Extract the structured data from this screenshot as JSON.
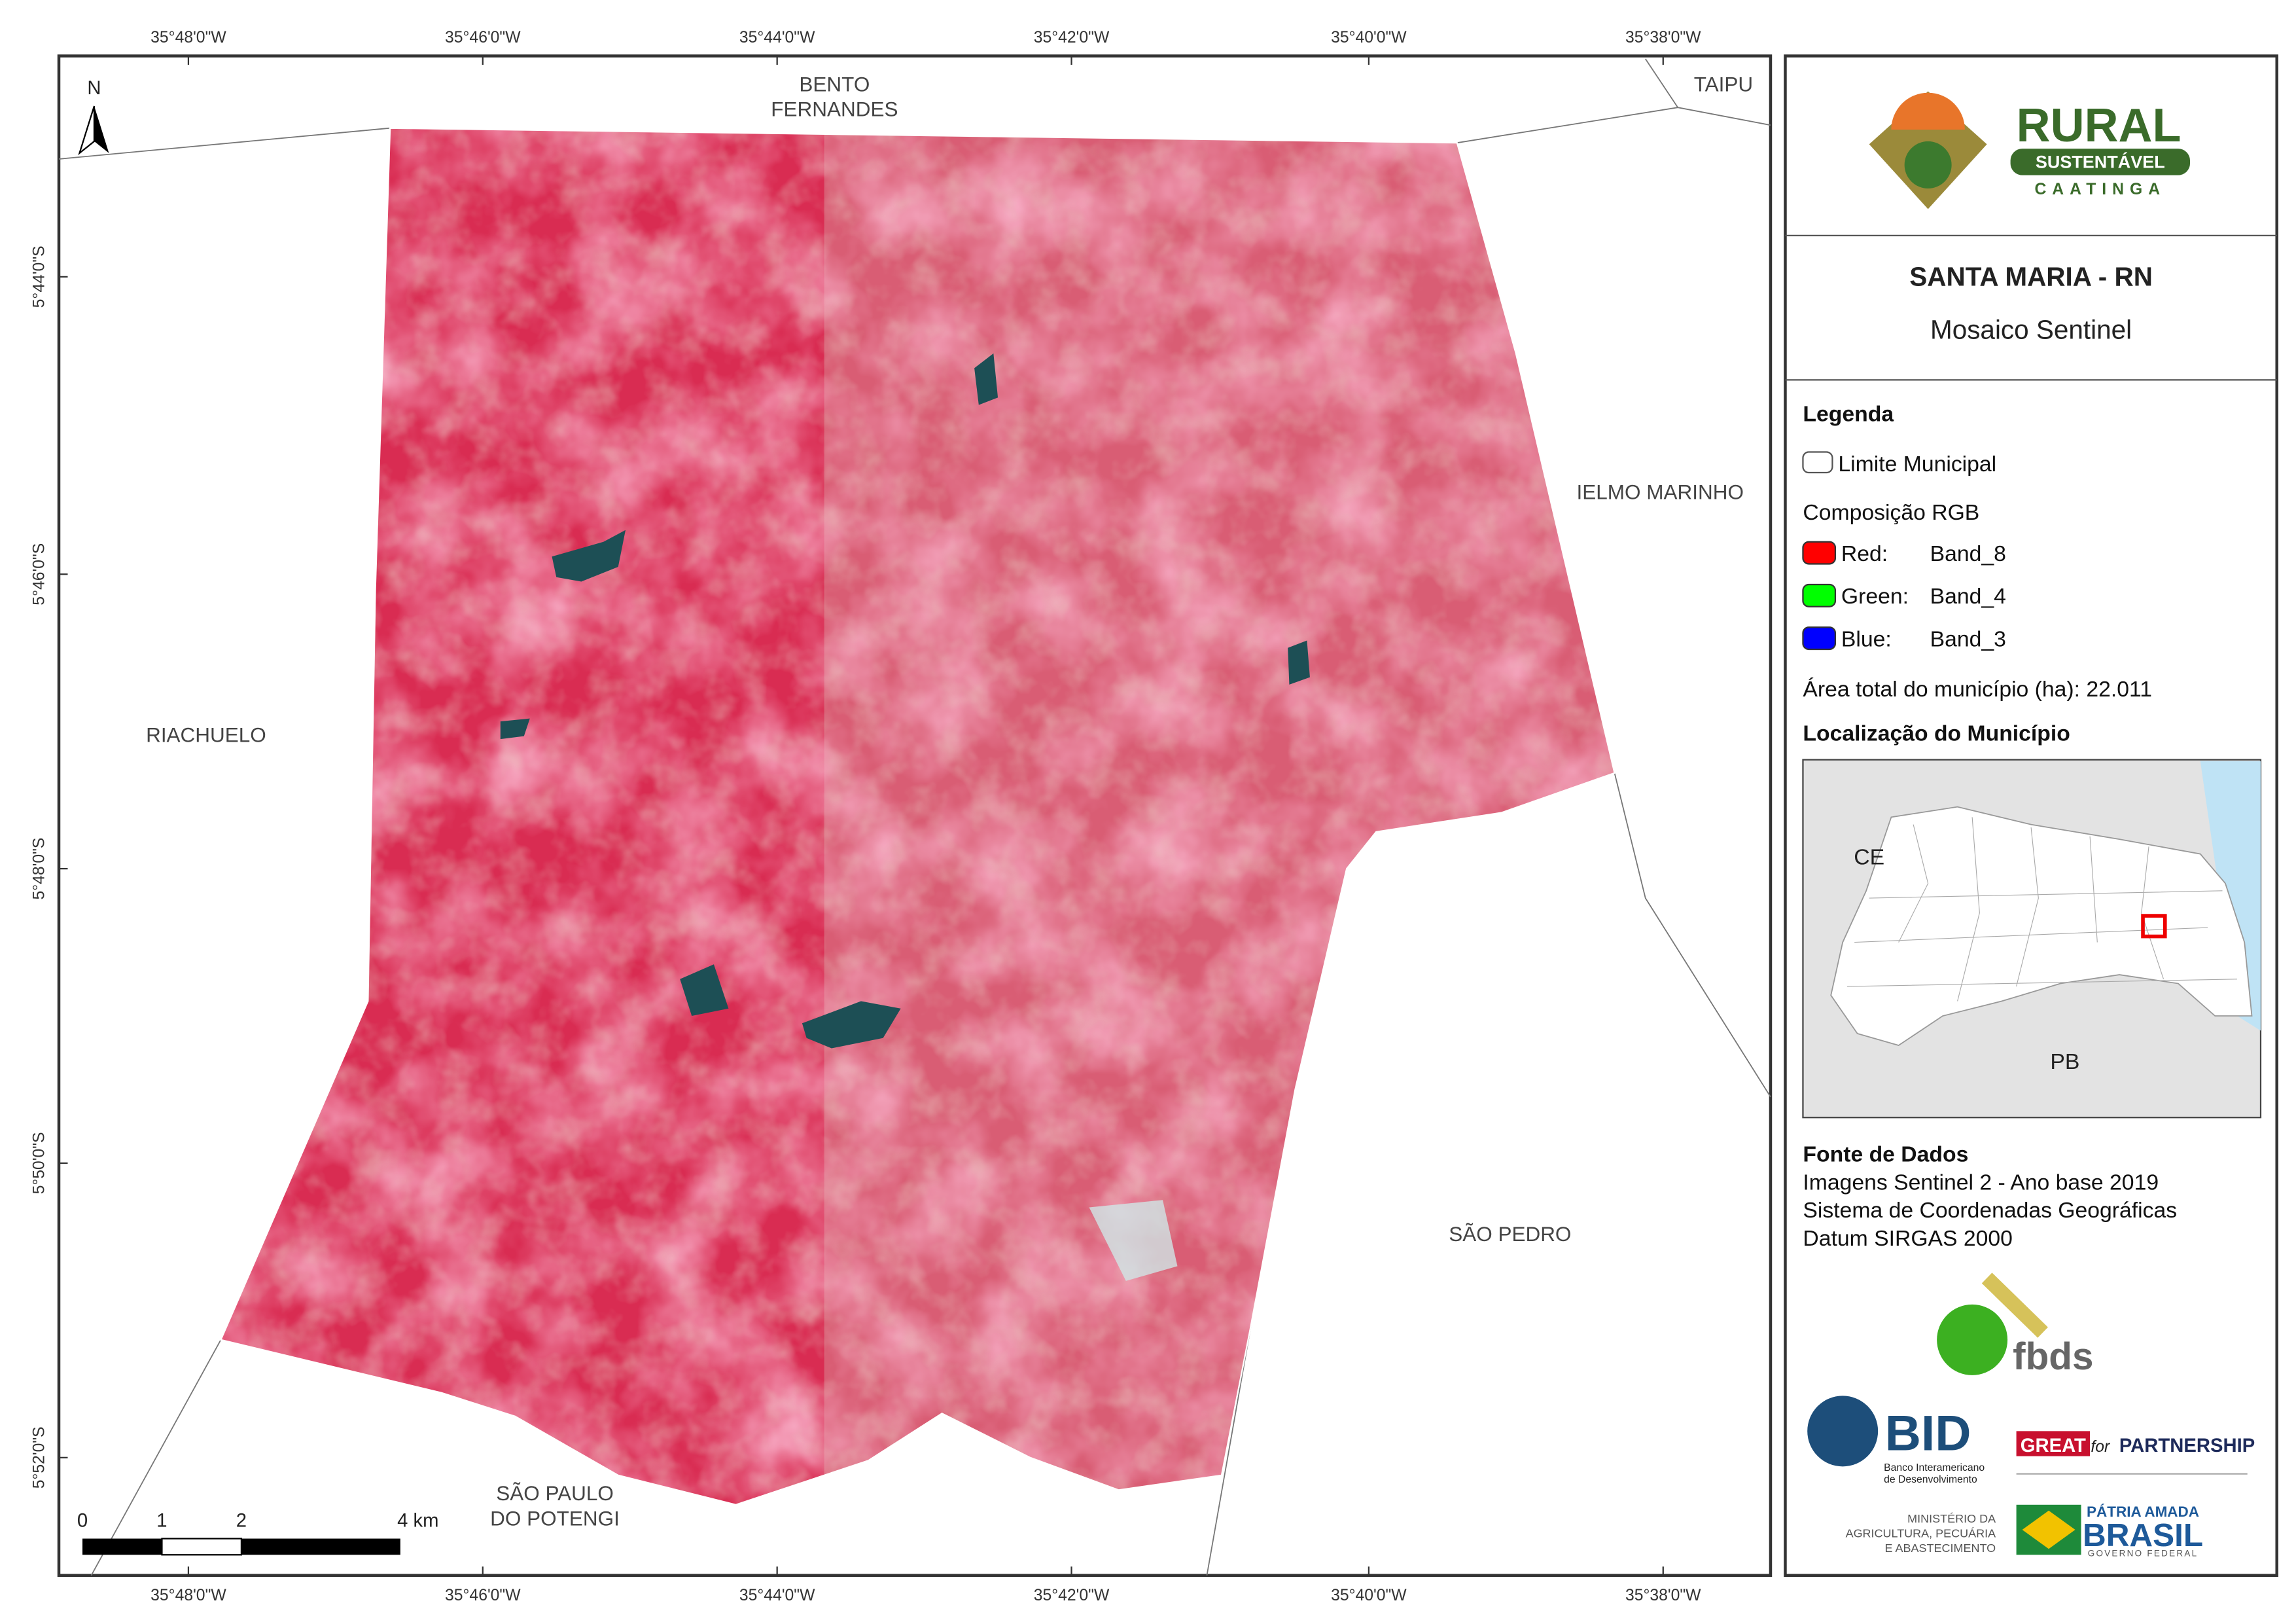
{
  "coordinates": {
    "longitude": [
      "35°48'0\"W",
      "35°46'0\"W",
      "35°44'0\"W",
      "35°42'0\"W",
      "35°40'0\"W",
      "35°38'0\"W"
    ],
    "latitude": [
      "5°44'0\"S",
      "5°46'0\"S",
      "5°48'0\"S",
      "5°50'0\"S",
      "5°52'0\"S"
    ]
  },
  "north_arrow": "N",
  "neighbors": [
    {
      "lines": [
        "BENTO",
        "FERNANDES"
      ]
    },
    {
      "lines": [
        "TAIPU"
      ]
    },
    {
      "lines": [
        "IELMO MARINHO"
      ]
    },
    {
      "lines": [
        "RIACHUELO"
      ]
    },
    {
      "lines": [
        "SÃO PEDRO"
      ]
    },
    {
      "lines": [
        "SÃO PAULO",
        "DO POTENGI"
      ]
    }
  ],
  "scale_bar": {
    "labels": [
      "0",
      "1",
      "2",
      "4 km"
    ]
  },
  "panel": {
    "logo": {
      "title": "RURAL",
      "subtitle": "SUSTENTÁVEL",
      "tagline": "CAATINGA"
    },
    "title": "SANTA MARIA - RN",
    "subtitle": "Mosaico Sentinel",
    "legend": {
      "heading": "Legenda",
      "boundary": "Limite Municipal",
      "composition": "Composição RGB",
      "bands": [
        {
          "label": "Red:",
          "band": "Band_8",
          "color": "#ff0000"
        },
        {
          "label": "Green:",
          "band": "Band_4",
          "color": "#00ff00"
        },
        {
          "label": "Blue:",
          "band": "Band_3",
          "color": "#0000ff"
        }
      ],
      "area": "Área total do município (ha): 22.011",
      "location_heading": "Localização do Município",
      "inset_labels": [
        "CE",
        "PB"
      ]
    },
    "source": {
      "heading": "Fonte de Dados",
      "lines": [
        "Imagens Sentinel 2 - Ano base 2019",
        "Sistema de Coordenadas Geográficas",
        "Datum SIRGAS 2000"
      ]
    },
    "partners": {
      "fbds": "fbds",
      "bid": "BID",
      "bid_name": [
        "Banco Interamericano",
        "de Desenvolvimento"
      ],
      "great": "GREAT",
      "great_for": "for",
      "great_partnership": "PARTNERSHIP",
      "ministry": [
        "MINISTÉRIO DA",
        "AGRICULTURA, PECUÁRIA",
        "E ABASTECIMENTO"
      ],
      "brasil_top": "PÁTRIA AMADA",
      "brasil": "BRASIL",
      "brasil_bottom": "GOVERNO FEDERAL"
    }
  }
}
